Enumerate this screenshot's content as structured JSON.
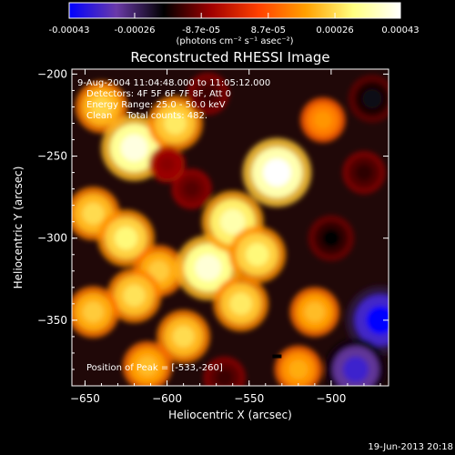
{
  "chart_data": {
    "type": "heatmap",
    "title": "Reconstructed RHESSI Image",
    "xlabel": "Heliocentric X (arcsec)",
    "ylabel": "Heliocentric Y (arcsec)",
    "xlim": [
      -658,
      -465
    ],
    "ylim": [
      -390,
      -197
    ],
    "xticks": [
      -650,
      -600,
      -550,
      -500
    ],
    "yticks": [
      -200,
      -250,
      -300,
      -350
    ],
    "colorbar": {
      "label": "(photons cm⁻² s⁻¹ asec⁻²)",
      "range": [
        -0.00043,
        0.00043
      ],
      "tick_values": [
        -0.00043,
        -0.00026,
        -8.7e-05,
        8.7e-05,
        0.00026,
        0.00043
      ],
      "tick_labels": [
        "-0.00043",
        "-0.00026",
        "-8.7e-05",
        "8.7e-05",
        "0.00026",
        "0.00043"
      ],
      "colors": [
        "#0000ff",
        "#6a3aa8",
        "#000000",
        "#a00000",
        "#ff4000",
        "#ffa000",
        "#ffff80",
        "#ffffff"
      ]
    },
    "annotations": [
      "9-Aug-2004 11:04:48.000 to 11:05:12.000",
      "Detectors: 4F 5F 6F 7F 8F, Att 0",
      "Energy Range: 25.0 - 50.0 keV",
      "Clean     Total counts: 482.",
      "Position of Peak = [-533,-260]"
    ],
    "peak": {
      "x": -533,
      "y": -260
    },
    "features": [
      {
        "x": -640,
        "y": -220,
        "value": 0.00025
      },
      {
        "x": -620,
        "y": -245,
        "value": 0.0004
      },
      {
        "x": -595,
        "y": -230,
        "value": 0.00028
      },
      {
        "x": -645,
        "y": -285,
        "value": 0.00026
      },
      {
        "x": -625,
        "y": -300,
        "value": 0.0003
      },
      {
        "x": -605,
        "y": -320,
        "value": 0.00024
      },
      {
        "x": -575,
        "y": -318,
        "value": 0.00039
      },
      {
        "x": -560,
        "y": -290,
        "value": 0.00035
      },
      {
        "x": -533,
        "y": -260,
        "value": 0.00043
      },
      {
        "x": -545,
        "y": -310,
        "value": 0.0003
      },
      {
        "x": -555,
        "y": -340,
        "value": 0.00028
      },
      {
        "x": -620,
        "y": -335,
        "value": 0.00027
      },
      {
        "x": -645,
        "y": -345,
        "value": 0.00024
      },
      {
        "x": -590,
        "y": -360,
        "value": 0.00026
      },
      {
        "x": -612,
        "y": -378,
        "value": 0.00022
      },
      {
        "x": -510,
        "y": -345,
        "value": 0.00022
      },
      {
        "x": -520,
        "y": -380,
        "value": 0.0002
      },
      {
        "x": -505,
        "y": -228,
        "value": 0.00017
      },
      {
        "x": -575,
        "y": -212,
        "value": -0.00014
      },
      {
        "x": -475,
        "y": -215,
        "value": -0.0002
      },
      {
        "x": -500,
        "y": -300,
        "value": -0.00018
      },
      {
        "x": -480,
        "y": -260,
        "value": -0.00015
      },
      {
        "x": -470,
        "y": -350,
        "value": -0.00043
      },
      {
        "x": -485,
        "y": -380,
        "value": -0.00036
      },
      {
        "x": -585,
        "y": -270,
        "value": -0.00012
      },
      {
        "x": -565,
        "y": -385,
        "value": -0.00014
      },
      {
        "x": -600,
        "y": -255,
        "value": -8e-05
      }
    ]
  },
  "footer": {
    "date": "19-Jun-2013 20:18"
  }
}
